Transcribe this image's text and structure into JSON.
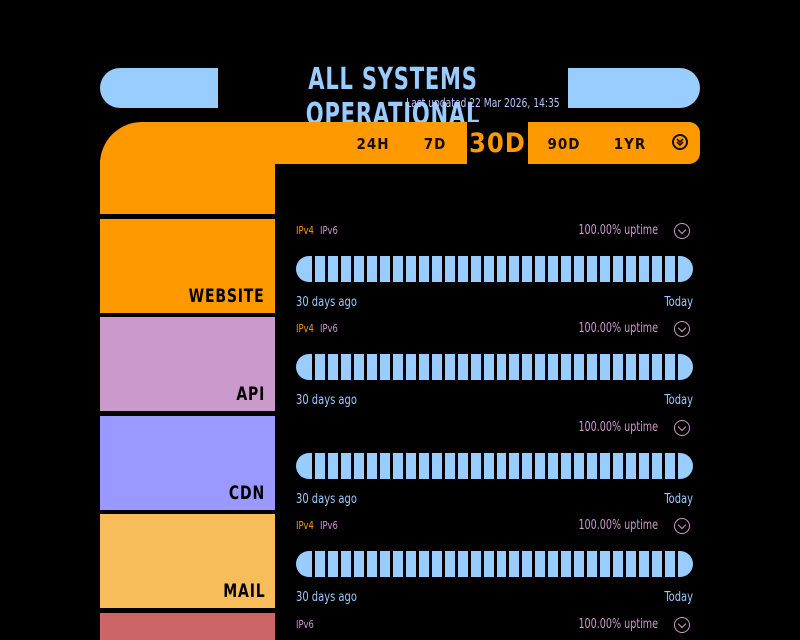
{
  "header": {
    "title": "ALL SYSTEMS OPERATIONAL",
    "last_updated": "Last updated 22 Mar 2026, 14:35"
  },
  "ranges": {
    "options": [
      "24H",
      "7D",
      "30D",
      "90D",
      "1YR"
    ],
    "selected": "30D"
  },
  "colors": {
    "accent": "#ff9900",
    "bar": "#99ccff",
    "ipv4": "#ff9900",
    "ipv6": "#cc99cc",
    "uptime_text": "#cc99cc"
  },
  "services": [
    {
      "name": "WEBSITE",
      "color": "#ff9900",
      "tags": [
        "IPv4",
        "IPv6"
      ],
      "uptime": "100.00% uptime",
      "bar_segments": 30,
      "axis_start": "30 days ago",
      "axis_end": "Today"
    },
    {
      "name": "API",
      "color": "#cc99cc",
      "tags": [
        "IPv4",
        "IPv6"
      ],
      "uptime": "100.00% uptime",
      "bar_segments": 30,
      "axis_start": "30 days ago",
      "axis_end": "Today"
    },
    {
      "name": "CDN",
      "color": "#9999ff",
      "tags": [],
      "uptime": "100.00% uptime",
      "bar_segments": 30,
      "axis_start": "30 days ago",
      "axis_end": "Today"
    },
    {
      "name": "MAIL",
      "color": "#f7bd5a",
      "tags": [
        "IPv4",
        "IPv6"
      ],
      "uptime": "100.00% uptime",
      "bar_segments": 30,
      "axis_start": "30 days ago",
      "axis_end": "Today"
    },
    {
      "name": "",
      "color": "#cc6666",
      "tags": [
        "IPv6"
      ],
      "uptime": "100.00% uptime"
    }
  ]
}
